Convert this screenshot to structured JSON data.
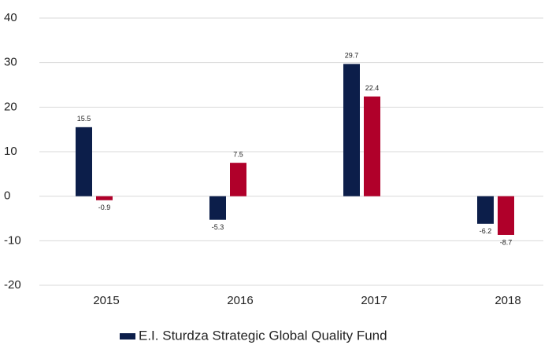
{
  "chart_data": {
    "type": "bar",
    "categories": [
      "2015",
      "2016",
      "2017",
      "2018"
    ],
    "series": [
      {
        "name": "E.I. Sturdza Strategic Global Quality Fund",
        "color": "#0c1e4a",
        "values": [
          15.5,
          -5.3,
          29.7,
          -6.2
        ]
      },
      {
        "color": "#b0002a",
        "values": [
          -0.9,
          7.5,
          22.4,
          -8.7
        ]
      }
    ],
    "ylim": [
      -20,
      40
    ],
    "yticks": [
      -20,
      -10,
      0,
      10,
      20,
      30,
      40
    ],
    "grid": true,
    "legend": "bottom"
  }
}
